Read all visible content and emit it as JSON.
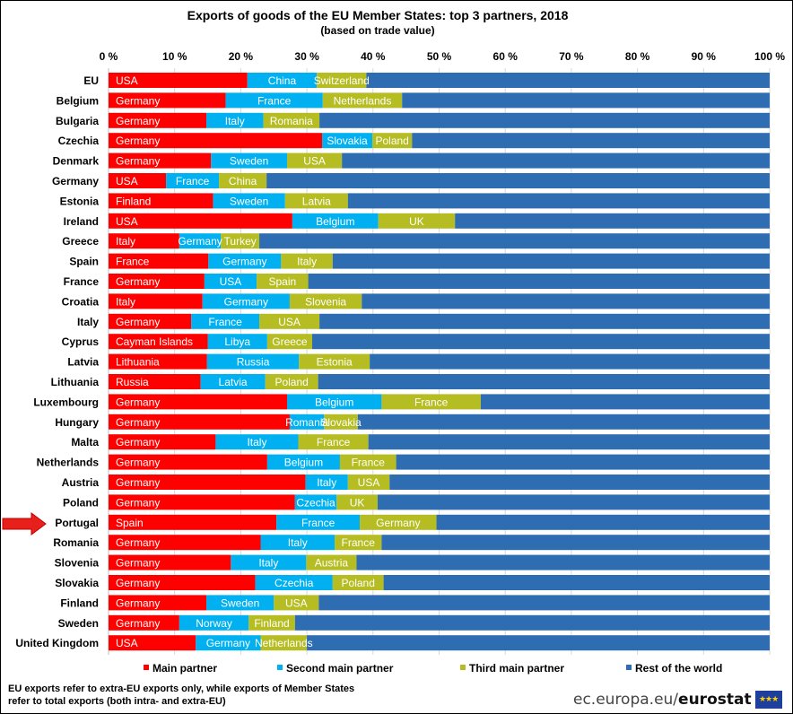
{
  "chart_data": {
    "type": "stacked_bar_horizontal",
    "title": "Exports of goods of the EU Member States: top 3 partners, 2018",
    "subtitle": "(based on trade value)",
    "x_ticks": [
      "0 %",
      "10 %",
      "20 %",
      "30 %",
      "40 %",
      "50 %",
      "60 %",
      "70 %",
      "80 %",
      "90 %",
      "100 %"
    ],
    "xlim": [
      0,
      100
    ],
    "legend_position": "bottom",
    "series_names": [
      "Main partner",
      "Second main partner",
      "Third main partner",
      "Rest of the world"
    ],
    "colors": [
      "#ff0000",
      "#00b0f0",
      "#b5bd22",
      "#2f6db2"
    ],
    "rows": [
      {
        "country": "EU",
        "partners": [
          "USA",
          "China",
          "Switzerland"
        ],
        "values": [
          21,
          10.5,
          7.5
        ]
      },
      {
        "country": "Belgium",
        "partners": [
          "Germany",
          "France",
          "Netherlands"
        ],
        "values": [
          17.7,
          14.7,
          12
        ]
      },
      {
        "country": "Bulgaria",
        "partners": [
          "Germany",
          "Italy",
          "Romania"
        ],
        "values": [
          14.8,
          8.6,
          8.5
        ]
      },
      {
        "country": "Czechia",
        "partners": [
          "Germany",
          "Slovakia",
          "Poland"
        ],
        "values": [
          32.3,
          7.6,
          6
        ]
      },
      {
        "country": "Denmark",
        "partners": [
          "Germany",
          "Sweden",
          "USA"
        ],
        "values": [
          15.5,
          11.5,
          8.3
        ]
      },
      {
        "country": "Germany",
        "partners": [
          "USA",
          "France",
          "China"
        ],
        "values": [
          8.7,
          8,
          7.2
        ]
      },
      {
        "country": "Estonia",
        "partners": [
          "Finland",
          "Sweden",
          "Latvia"
        ],
        "values": [
          15.8,
          10.9,
          9.5
        ]
      },
      {
        "country": "Ireland",
        "partners": [
          "USA",
          "Belgium",
          "UK"
        ],
        "values": [
          27.8,
          13,
          11.6
        ]
      },
      {
        "country": "Greece",
        "partners": [
          "Italy",
          "Germany",
          "Turkey"
        ],
        "values": [
          10.7,
          6.3,
          5.8
        ]
      },
      {
        "country": "Spain",
        "partners": [
          "France",
          "Germany",
          "Italy"
        ],
        "values": [
          15.1,
          11,
          7.8
        ]
      },
      {
        "country": "France",
        "partners": [
          "Germany",
          "USA",
          "Spain"
        ],
        "values": [
          14.5,
          7.9,
          7.8
        ]
      },
      {
        "country": "Croatia",
        "partners": [
          "Italy",
          "Germany",
          "Slovenia"
        ],
        "values": [
          14.2,
          13.2,
          10.9
        ]
      },
      {
        "country": "Italy",
        "partners": [
          "Germany",
          "France",
          "USA"
        ],
        "values": [
          12.5,
          10.3,
          9.1
        ]
      },
      {
        "country": "Cyprus",
        "partners": [
          "Cayman Islands",
          "Libya",
          "Greece"
        ],
        "values": [
          15,
          9,
          6.8
        ]
      },
      {
        "country": "Latvia",
        "partners": [
          "Lithuania",
          "Russia",
          "Estonia"
        ],
        "values": [
          14.9,
          13.9,
          10.7
        ]
      },
      {
        "country": "Lithuania",
        "partners": [
          "Russia",
          "Latvia",
          "Poland"
        ],
        "values": [
          13.9,
          9.8,
          8
        ]
      },
      {
        "country": "Luxembourg",
        "partners": [
          "Germany",
          "Belgium",
          "France"
        ],
        "values": [
          27,
          14.3,
          15
        ]
      },
      {
        "country": "Hungary",
        "partners": [
          "Germany",
          "Romania",
          "Slovakia"
        ],
        "values": [
          27.4,
          5.2,
          5.1
        ]
      },
      {
        "country": "Malta",
        "partners": [
          "Germany",
          "Italy",
          "France"
        ],
        "values": [
          16.2,
          12.5,
          10.6
        ]
      },
      {
        "country": "Netherlands",
        "partners": [
          "Germany",
          "Belgium",
          "France"
        ],
        "values": [
          24,
          11,
          8.5
        ]
      },
      {
        "country": "Austria",
        "partners": [
          "Germany",
          "Italy",
          "USA"
        ],
        "values": [
          29.8,
          6.4,
          6.3
        ]
      },
      {
        "country": "Poland",
        "partners": [
          "Germany",
          "Czechia",
          "UK"
        ],
        "values": [
          28.2,
          6.3,
          6.2
        ]
      },
      {
        "country": "Portugal",
        "partners": [
          "Spain",
          "France",
          "Germany"
        ],
        "values": [
          25.4,
          12.6,
          11.6
        ]
      },
      {
        "country": "Romania",
        "partners": [
          "Germany",
          "Italy",
          "France"
        ],
        "values": [
          23,
          11.2,
          7.1
        ]
      },
      {
        "country": "Slovenia",
        "partners": [
          "Germany",
          "Italy",
          "Austria"
        ],
        "values": [
          18.5,
          11.4,
          7.6
        ]
      },
      {
        "country": "Slovakia",
        "partners": [
          "Germany",
          "Czechia",
          "Poland"
        ],
        "values": [
          22.2,
          11.7,
          7.7
        ]
      },
      {
        "country": "Finland",
        "partners": [
          "Germany",
          "Sweden",
          "USA"
        ],
        "values": [
          14.8,
          10.2,
          6.8
        ]
      },
      {
        "country": "Sweden",
        "partners": [
          "Germany",
          "Norway",
          "Finland"
        ],
        "values": [
          10.7,
          10.5,
          7
        ]
      },
      {
        "country": "United Kingdom",
        "partners": [
          "USA",
          "Germany",
          "Netherlands"
        ],
        "values": [
          13.2,
          9.8,
          7
        ]
      }
    ],
    "highlighted_country": "Portugal"
  },
  "footnote": {
    "line1": "EU exports  refer to extra-EU exports only, while exports of Member States",
    "line2": "refer to total exports (both intra- and extra-EU)"
  },
  "source": {
    "domain": "ec.europa.eu/",
    "brand": "eurostat"
  }
}
